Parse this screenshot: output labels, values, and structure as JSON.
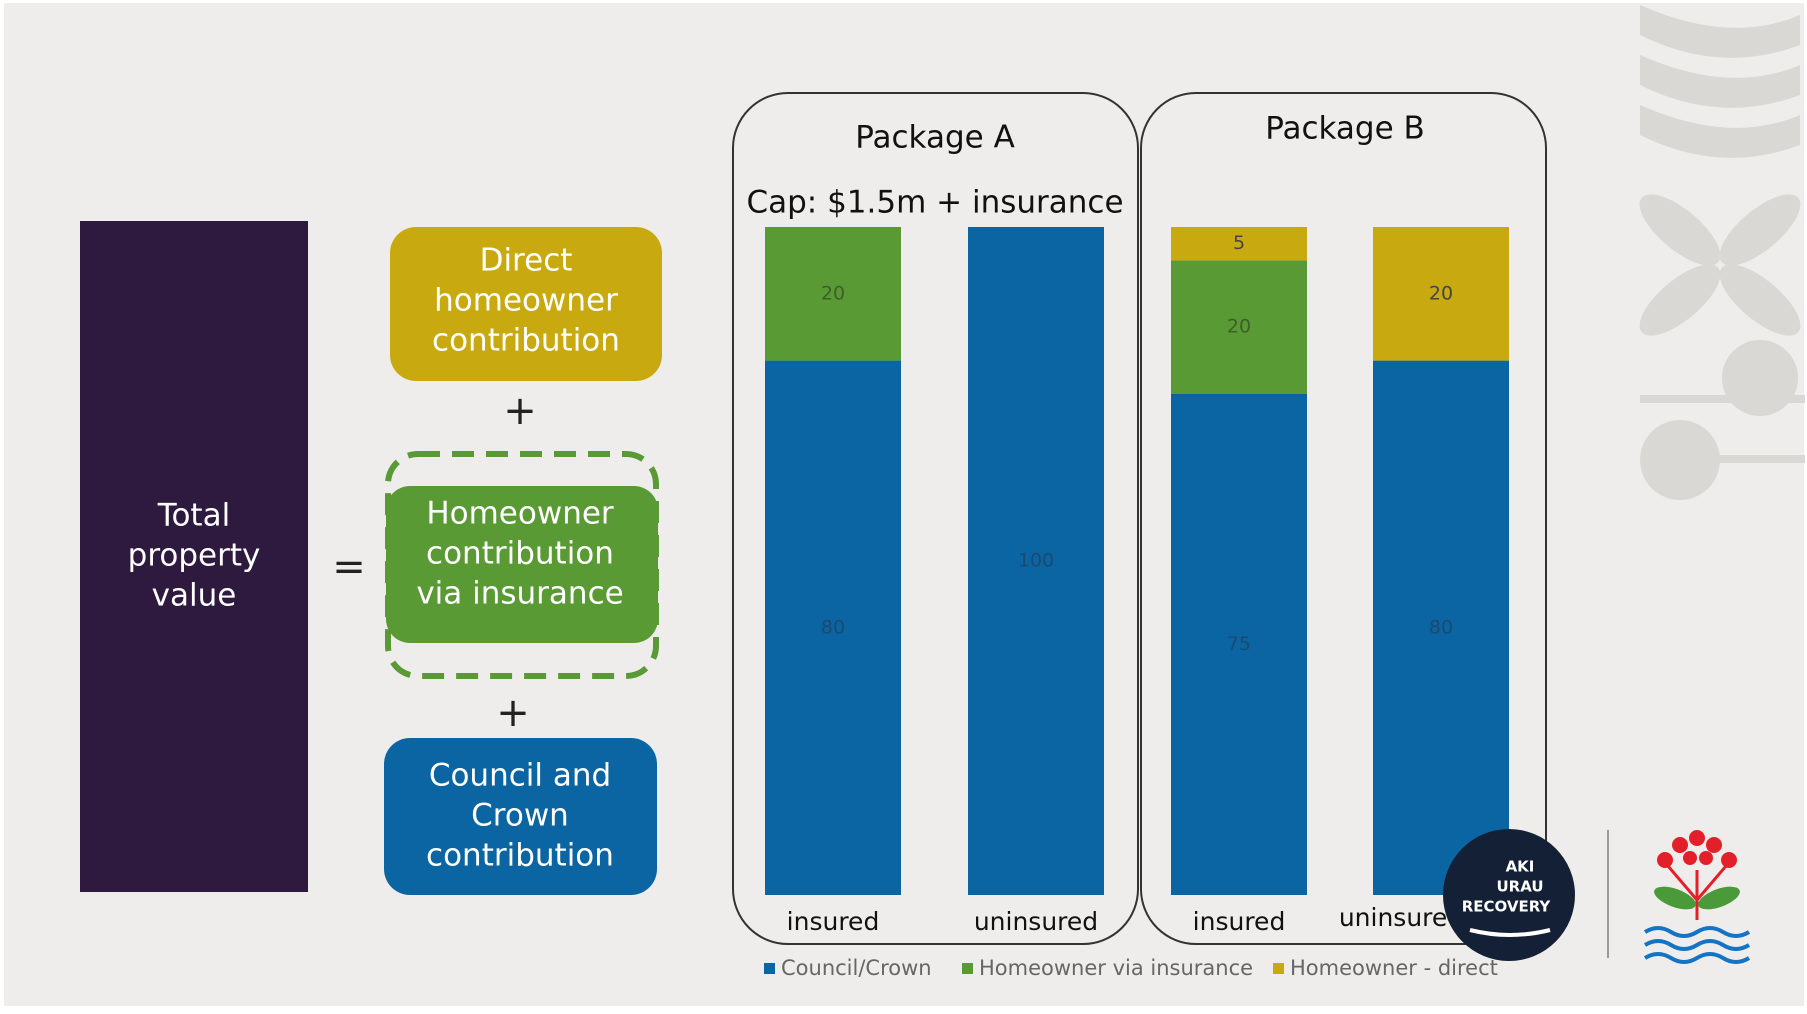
{
  "diagram": {
    "total": [
      "Total",
      "property",
      "value"
    ],
    "equals": "=",
    "direct": [
      "Direct",
      "homeowner",
      "contribution"
    ],
    "plus_1": "+",
    "insurance": [
      "Homeowner",
      "contribution",
      "via insurance"
    ],
    "plus_2": "+",
    "council": [
      "Council and",
      "Crown",
      "contribution"
    ]
  },
  "chart_data": {
    "type": "bar",
    "stacked": true,
    "groups": [
      {
        "title": "Package A",
        "subtitle": "Cap: $1.5m + insurance"
      },
      {
        "title": "Package B"
      }
    ],
    "categories": [
      "insured",
      "uninsured",
      "insured",
      "uninsured"
    ],
    "series": [
      {
        "name": "Council/Crown",
        "color": "#0b65a3",
        "values": [
          80,
          100,
          75,
          80
        ]
      },
      {
        "name": "Homeowner via insurance",
        "color": "#5a9a34",
        "values": [
          20,
          null,
          20,
          null
        ]
      },
      {
        "name": "Homeowner - direct",
        "color": "#c8aa10",
        "values": [
          null,
          null,
          5,
          20
        ]
      }
    ]
  },
  "logo": {
    "lines": [
      "AKI",
      "URAU",
      "RECOVERY"
    ]
  }
}
